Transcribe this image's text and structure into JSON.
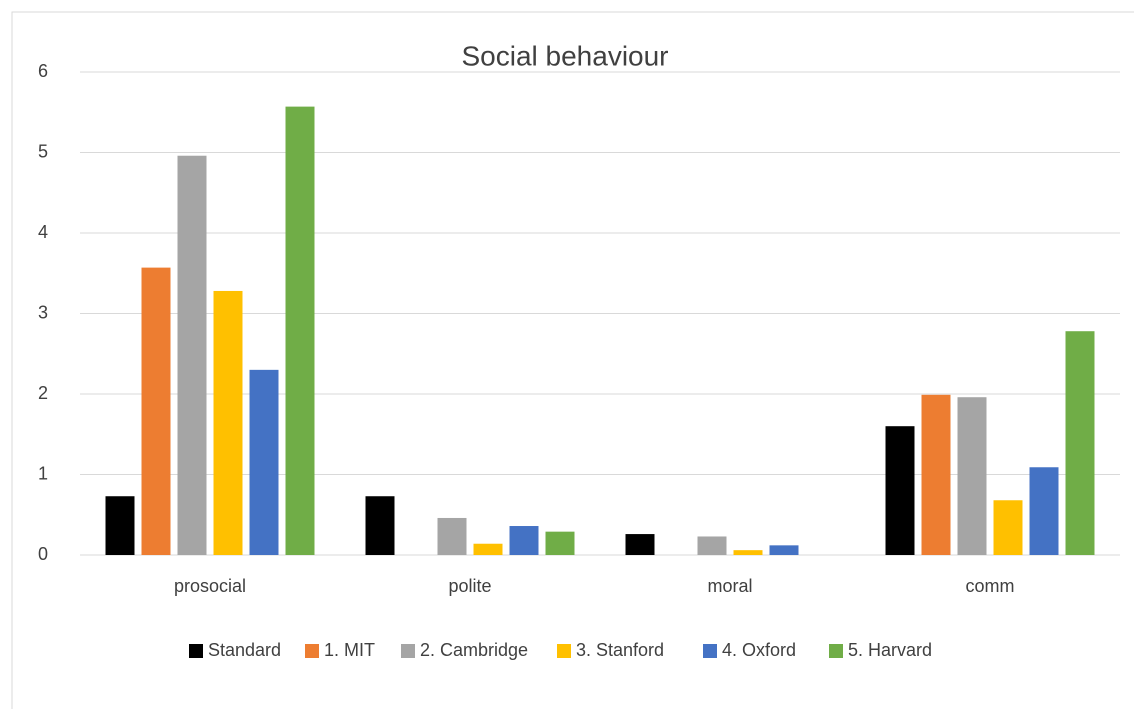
{
  "chart_data": {
    "type": "bar",
    "title": "Social behaviour",
    "categories": [
      "prosocial",
      "polite",
      "moral",
      "comm"
    ],
    "series": [
      {
        "name": "Standard",
        "color": "#000000",
        "values": [
          0.73,
          0.73,
          0.26,
          1.6
        ]
      },
      {
        "name": "1. MIT",
        "color": "#ed7d31",
        "values": [
          3.57,
          0,
          0,
          1.99
        ]
      },
      {
        "name": "2. Cambridge",
        "color": "#a5a5a5",
        "values": [
          4.96,
          0.46,
          0.23,
          1.96
        ]
      },
      {
        "name": "3. Stanford",
        "color": "#ffc000",
        "values": [
          3.28,
          0.14,
          0.06,
          0.68
        ]
      },
      {
        "name": "4. Oxford",
        "color": "#4472c4",
        "values": [
          2.3,
          0.36,
          0.12,
          1.09
        ]
      },
      {
        "name": "5. Harvard",
        "color": "#70ad47",
        "values": [
          5.57,
          0.29,
          0,
          2.78
        ]
      }
    ],
    "ylim": [
      0,
      6
    ],
    "yticks": [
      0,
      1,
      2,
      3,
      4,
      5,
      6
    ],
    "grid": true,
    "legend": "bottom"
  }
}
